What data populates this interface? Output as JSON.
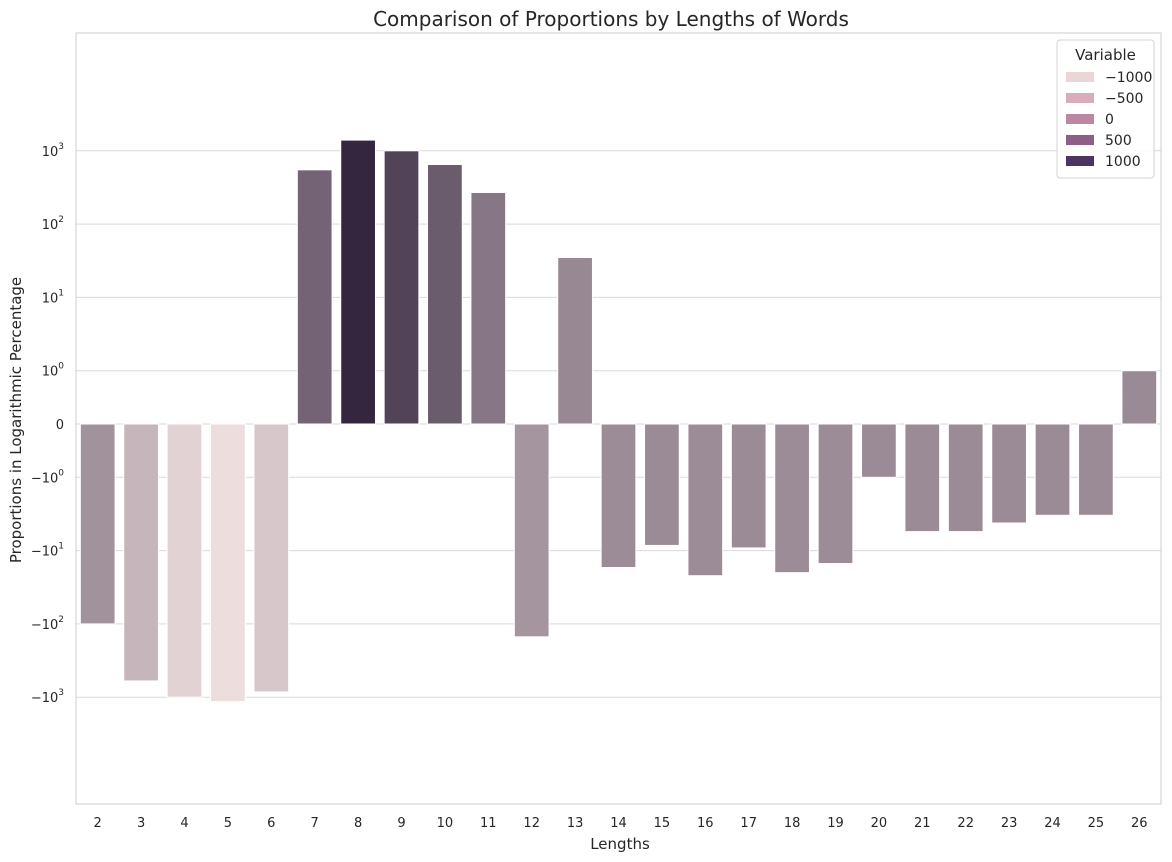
{
  "chart_data": {
    "type": "bar",
    "title": "Comparison of Proportions by Lengths of Words",
    "xlabel": "Lengths",
    "ylabel": "Proportions in Logarithmic Percentage",
    "scale": "symlog",
    "categories": [
      "2",
      "3",
      "4",
      "5",
      "6",
      "7",
      "8",
      "9",
      "10",
      "11",
      "12",
      "13",
      "14",
      "15",
      "16",
      "17",
      "18",
      "19",
      "20",
      "21",
      "22",
      "23",
      "24",
      "25",
      "26"
    ],
    "values": [
      -100,
      -600,
      -1000,
      -1150,
      -850,
      550,
      1400,
      1000,
      650,
      270,
      -150,
      35,
      -17,
      -8.5,
      -22,
      -9.2,
      -20,
      -15,
      -1,
      -5.5,
      -5.5,
      -4.2,
      -3.3,
      -3.3,
      1
    ],
    "y_ticks": [
      {
        "base": "10",
        "exp": "3"
      },
      {
        "base": "10",
        "exp": "2"
      },
      {
        "base": "10",
        "exp": "1"
      },
      {
        "base": "10",
        "exp": "0"
      },
      {
        "base": "0",
        "exp": ""
      },
      {
        "base": "−10",
        "exp": "0"
      },
      {
        "base": "−10",
        "exp": "1"
      },
      {
        "base": "−10",
        "exp": "2"
      },
      {
        "base": "−10",
        "exp": "3"
      }
    ],
    "y_tick_values": [
      1000,
      100,
      10,
      1,
      0,
      -1,
      -10,
      -100,
      -1000
    ],
    "legend": {
      "title": "Variable",
      "placement": "top-right",
      "entries": [
        {
          "label": "−1000",
          "color": "#ebd6d7"
        },
        {
          "label": "−500",
          "color": "#d9abbb"
        },
        {
          "label": "0",
          "color": "#bb87a2"
        },
        {
          "label": "500",
          "color": "#8e5f86"
        },
        {
          "label": "1000",
          "color": "#4e3561"
        }
      ]
    },
    "grid": true,
    "colors": {
      "hue_low": "#eedddd",
      "hue_high": "#35263f"
    }
  }
}
